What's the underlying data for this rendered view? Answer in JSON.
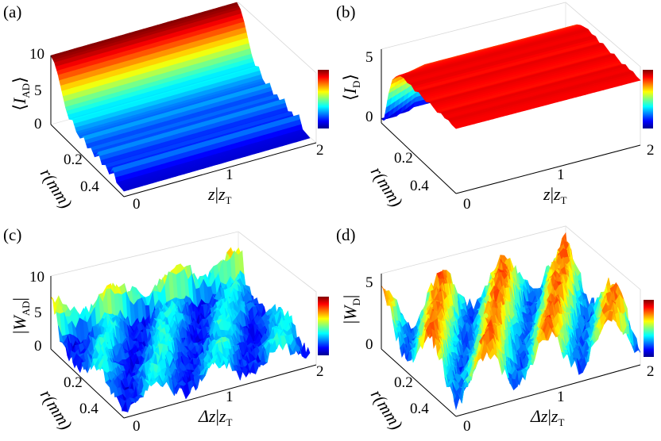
{
  "chart_data": [
    {
      "type": "surface",
      "panel_label": "(a)",
      "zlabel": "⟨I_AD⟩",
      "zlabel_main": "I",
      "zlabel_sub": "AD",
      "xlabel": "z/z_T",
      "xlabel_main": "z",
      "xlabel_sub": "T",
      "ylabel": "r(mm)",
      "x_ticks": [
        "0",
        "1",
        "2"
      ],
      "y_ticks": [
        "0.2",
        "0.4"
      ],
      "z_ticks": [
        "0",
        "5",
        "10"
      ],
      "xlim": [
        0,
        2
      ],
      "ylim": [
        0,
        0.5
      ],
      "zlim": [
        0,
        10
      ],
      "colormap": "jet",
      "profile_r": [
        0,
        0.025,
        0.05,
        0.075,
        0.1,
        0.125,
        0.15,
        0.175,
        0.2,
        0.225,
        0.25,
        0.275,
        0.3,
        0.325,
        0.35,
        0.375,
        0.4,
        0.425,
        0.45,
        0.475,
        0.5
      ],
      "profile_values": [
        10,
        9.5,
        8.2,
        6.4,
        4.6,
        3.4,
        3.8,
        2.6,
        2.2,
        3.0,
        1.8,
        2.4,
        1.6,
        2.8,
        1.5,
        2.0,
        1.2,
        2.6,
        1.0,
        0.9,
        0.8
      ]
    },
    {
      "type": "surface",
      "panel_label": "(b)",
      "zlabel": "⟨I_D⟩",
      "zlabel_main": "I",
      "zlabel_sub": "D",
      "xlabel": "z/z_T",
      "xlabel_main": "z",
      "xlabel_sub": "T",
      "ylabel": "r(mm)",
      "x_ticks": [
        "0",
        "1",
        "2"
      ],
      "y_ticks": [
        "0.2",
        "0.4"
      ],
      "z_ticks": [
        "0",
        "5"
      ],
      "xlim": [
        0,
        2
      ],
      "ylim": [
        0,
        0.5
      ],
      "zlim": [
        0,
        5
      ],
      "colormap": "jet",
      "profile_r": [
        0,
        0.025,
        0.05,
        0.075,
        0.1,
        0.125,
        0.15,
        0.175,
        0.2,
        0.225,
        0.25,
        0.275,
        0.3,
        0.325,
        0.35,
        0.375,
        0.4,
        0.425,
        0.45,
        0.475,
        0.5
      ],
      "profile_values": [
        0.5,
        1.8,
        3.2,
        4.1,
        4.3,
        4.4,
        4.5,
        4.4,
        4.5,
        4.3,
        4.5,
        4.4,
        4.3,
        4.5,
        4.4,
        4.3,
        4.5,
        4.4,
        4.5,
        4.4,
        4.4
      ]
    },
    {
      "type": "surface",
      "panel_label": "(c)",
      "zlabel": "|W_AD|",
      "zlabel_main": "W",
      "zlabel_sub": "AD",
      "xlabel": "Δz/z_T",
      "xlabel_main": "Δz",
      "xlabel_sub": "T",
      "ylabel": "r(mm)",
      "x_ticks": [
        "0",
        "1",
        "2"
      ],
      "y_ticks": [
        "0.2",
        "0.4"
      ],
      "z_ticks": [
        "0",
        "5",
        "10"
      ],
      "xlim": [
        0,
        2
      ],
      "ylim": [
        0,
        0.5
      ],
      "zlim": [
        0,
        10
      ],
      "colormap": "jet"
    },
    {
      "type": "surface",
      "panel_label": "(d)",
      "zlabel": "|W_D|",
      "zlabel_main": "W",
      "zlabel_sub": "D",
      "xlabel": "Δz/z_T",
      "xlabel_main": "Δz",
      "xlabel_sub": "T",
      "ylabel": "r(mm)",
      "x_ticks": [
        "0",
        "1",
        "2"
      ],
      "y_ticks": [
        "0.2",
        "0.4"
      ],
      "z_ticks": [
        "0",
        "5"
      ],
      "xlim": [
        0,
        2
      ],
      "ylim": [
        0,
        0.5
      ],
      "zlim": [
        0,
        5
      ],
      "colormap": "jet"
    }
  ]
}
